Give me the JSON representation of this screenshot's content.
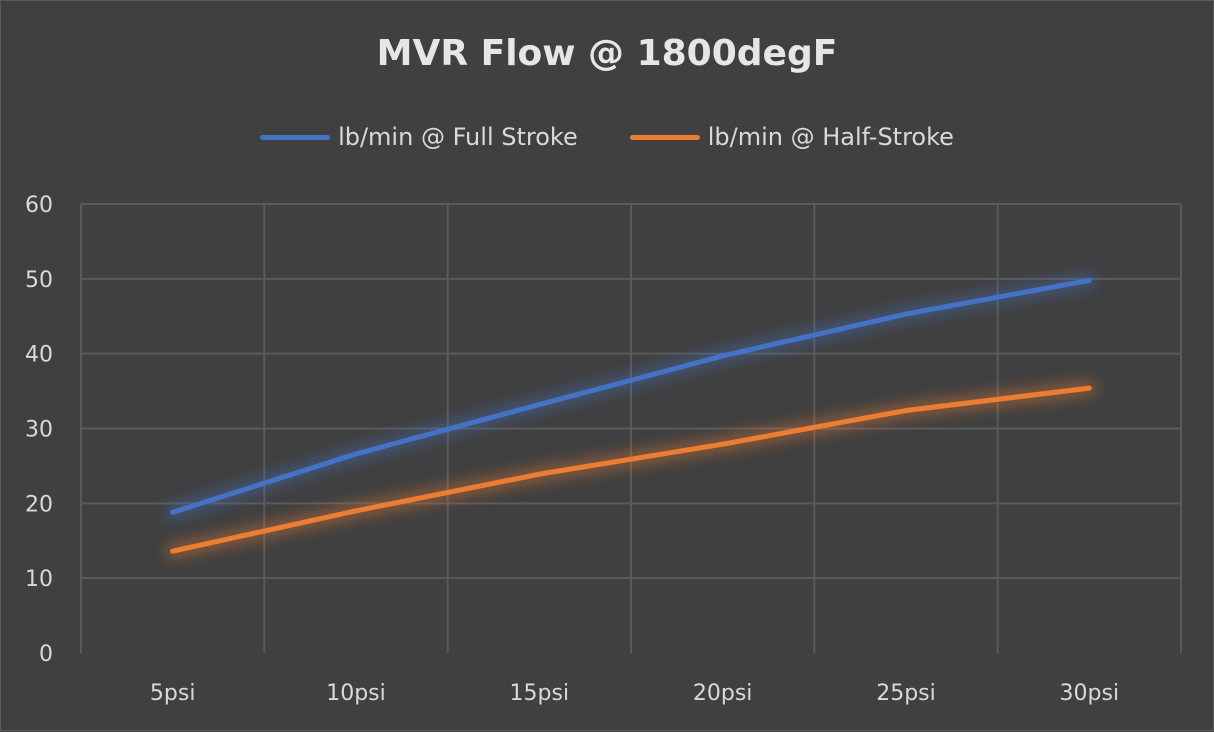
{
  "chart_data": {
    "type": "line",
    "title": "MVR Flow @ 1800degF",
    "xlabel": "",
    "ylabel": "",
    "categories": [
      "5psi",
      "10psi",
      "15psi",
      "20psi",
      "25psi",
      "30psi"
    ],
    "series": [
      {
        "name": "lb/min @ Full Stroke",
        "color": "#4472c4",
        "values": [
          18.8,
          26.6,
          33.2,
          39.7,
          45.3,
          49.8
        ]
      },
      {
        "name": "lb/min @ Half-Stroke",
        "color": "#ed7d31",
        "values": [
          13.6,
          19.0,
          23.9,
          27.9,
          32.4,
          35.4
        ]
      }
    ],
    "ylim": [
      0,
      60
    ],
    "yticks": [
      "0",
      "10",
      "20",
      "30",
      "40",
      "50",
      "60"
    ],
    "grid": true,
    "legend_position": "top",
    "background": "#404040"
  }
}
